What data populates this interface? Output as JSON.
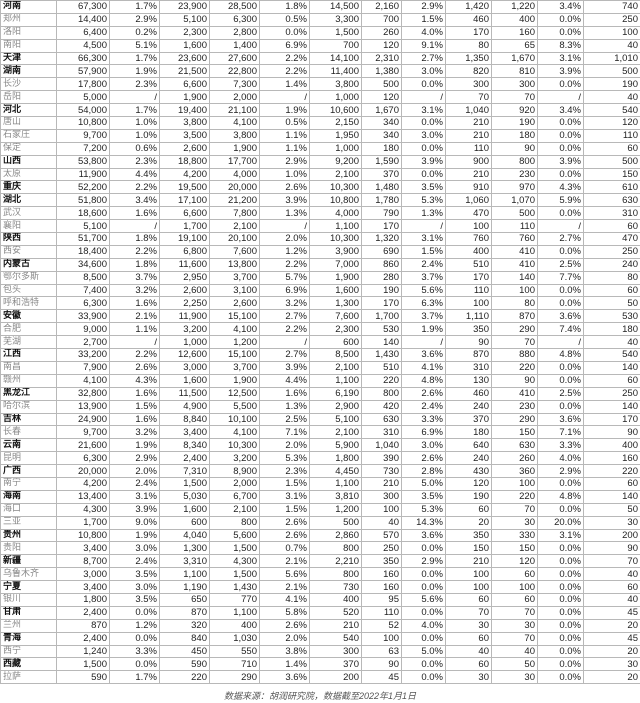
{
  "rows": [
    {
      "name": "河南",
      "province": true,
      "v": [
        "67,300",
        "1.7%",
        "23,900",
        "28,500",
        "1.8%",
        "14,500",
        "2,160",
        "2.9%",
        "1,420",
        "1,220",
        "3.4%",
        "740"
      ]
    },
    {
      "name": "郑州",
      "province": false,
      "v": [
        "14,400",
        "2.9%",
        "5,100",
        "6,300",
        "0.5%",
        "3,300",
        "700",
        "1.5%",
        "460",
        "400",
        "0.0%",
        "250"
      ]
    },
    {
      "name": "洛阳",
      "province": false,
      "v": [
        "6,400",
        "0.2%",
        "2,300",
        "2,800",
        "0.0%",
        "1,500",
        "260",
        "4.0%",
        "170",
        "160",
        "0.0%",
        "100"
      ]
    },
    {
      "name": "南阳",
      "province": false,
      "v": [
        "4,500",
        "5.1%",
        "1,600",
        "1,400",
        "6.9%",
        "700",
        "120",
        "9.1%",
        "80",
        "65",
        "8.3%",
        "40"
      ]
    },
    {
      "name": "天津",
      "province": true,
      "v": [
        "66,300",
        "1.7%",
        "23,600",
        "27,600",
        "2.2%",
        "14,100",
        "2,310",
        "2.7%",
        "1,350",
        "1,670",
        "3.1%",
        "1,010"
      ]
    },
    {
      "name": "湖南",
      "province": true,
      "v": [
        "57,900",
        "1.9%",
        "21,500",
        "22,800",
        "2.2%",
        "11,400",
        "1,380",
        "3.0%",
        "820",
        "810",
        "3.9%",
        "500"
      ]
    },
    {
      "name": "长沙",
      "province": false,
      "v": [
        "17,800",
        "2.3%",
        "6,600",
        "7,300",
        "1.4%",
        "3,800",
        "500",
        "0.0%",
        "300",
        "300",
        "0.0%",
        "190"
      ]
    },
    {
      "name": "岳阳",
      "province": false,
      "v": [
        "5,000",
        "/",
        "1,900",
        "2,000",
        "/",
        "1,000",
        "120",
        "/",
        "70",
        "70",
        "/",
        "40"
      ]
    },
    {
      "name": "河北",
      "province": true,
      "v": [
        "54,000",
        "1.7%",
        "19,400",
        "21,100",
        "1.9%",
        "10,600",
        "1,670",
        "3.1%",
        "1,040",
        "920",
        "3.4%",
        "540"
      ]
    },
    {
      "name": "唐山",
      "province": false,
      "v": [
        "10,800",
        "1.0%",
        "3,800",
        "4,100",
        "0.5%",
        "2,150",
        "340",
        "0.0%",
        "210",
        "190",
        "0.0%",
        "120"
      ]
    },
    {
      "name": "石家庄",
      "province": false,
      "v": [
        "9,700",
        "1.0%",
        "3,500",
        "3,800",
        "1.1%",
        "1,950",
        "340",
        "3.0%",
        "210",
        "180",
        "0.0%",
        "110"
      ]
    },
    {
      "name": "保定",
      "province": false,
      "v": [
        "7,200",
        "0.6%",
        "2,600",
        "1,900",
        "1.1%",
        "1,000",
        "180",
        "0.0%",
        "110",
        "90",
        "0.0%",
        "60"
      ]
    },
    {
      "name": "山西",
      "province": true,
      "v": [
        "53,800",
        "2.3%",
        "18,800",
        "17,700",
        "2.9%",
        "9,200",
        "1,590",
        "3.9%",
        "900",
        "800",
        "3.9%",
        "500"
      ]
    },
    {
      "name": "太原",
      "province": false,
      "v": [
        "11,900",
        "4.4%",
        "4,200",
        "4,000",
        "1.0%",
        "2,100",
        "370",
        "0.0%",
        "210",
        "230",
        "0.0%",
        "150"
      ]
    },
    {
      "name": "重庆",
      "province": true,
      "v": [
        "52,200",
        "2.2%",
        "19,500",
        "20,000",
        "2.6%",
        "10,300",
        "1,480",
        "3.5%",
        "910",
        "970",
        "4.3%",
        "610"
      ]
    },
    {
      "name": "湖北",
      "province": true,
      "v": [
        "51,800",
        "3.4%",
        "17,100",
        "21,200",
        "3.9%",
        "10,800",
        "1,780",
        "5.3%",
        "1,060",
        "1,070",
        "5.9%",
        "630"
      ]
    },
    {
      "name": "武汉",
      "province": false,
      "v": [
        "18,600",
        "1.6%",
        "6,600",
        "7,800",
        "1.3%",
        "4,000",
        "790",
        "1.3%",
        "470",
        "500",
        "0.0%",
        "310"
      ]
    },
    {
      "name": "襄阳",
      "province": false,
      "v": [
        "5,100",
        "/",
        "1,700",
        "2,100",
        "/",
        "1,100",
        "170",
        "/",
        "100",
        "110",
        "/",
        "60"
      ]
    },
    {
      "name": "陕西",
      "province": true,
      "v": [
        "51,700",
        "1.8%",
        "19,100",
        "20,100",
        "2.0%",
        "10,300",
        "1,320",
        "3.1%",
        "760",
        "760",
        "2.7%",
        "470"
      ]
    },
    {
      "name": "西安",
      "province": false,
      "v": [
        "18,400",
        "2.2%",
        "6,800",
        "7,600",
        "1.2%",
        "3,900",
        "690",
        "1.5%",
        "400",
        "410",
        "0.0%",
        "250"
      ]
    },
    {
      "name": "内蒙古",
      "province": true,
      "v": [
        "34,600",
        "1.8%",
        "11,600",
        "13,800",
        "2.2%",
        "7,000",
        "860",
        "2.4%",
        "510",
        "410",
        "2.5%",
        "240"
      ]
    },
    {
      "name": "鄂尔多斯",
      "province": false,
      "v": [
        "8,500",
        "3.7%",
        "2,950",
        "3,700",
        "5.7%",
        "1,900",
        "280",
        "3.7%",
        "170",
        "140",
        "7.7%",
        "80"
      ]
    },
    {
      "name": "包头",
      "province": false,
      "v": [
        "7,400",
        "3.2%",
        "2,600",
        "3,100",
        "6.9%",
        "1,600",
        "190",
        "5.6%",
        "110",
        "100",
        "0.0%",
        "60"
      ]
    },
    {
      "name": "呼和浩特",
      "province": false,
      "v": [
        "6,300",
        "1.6%",
        "2,250",
        "2,600",
        "3.2%",
        "1,300",
        "170",
        "6.3%",
        "100",
        "80",
        "0.0%",
        "50"
      ]
    },
    {
      "name": "安徽",
      "province": true,
      "v": [
        "33,900",
        "2.1%",
        "11,900",
        "15,100",
        "2.7%",
        "7,600",
        "1,700",
        "3.7%",
        "1,110",
        "870",
        "3.6%",
        "530"
      ]
    },
    {
      "name": "合肥",
      "province": false,
      "v": [
        "9,000",
        "1.1%",
        "3,200",
        "4,100",
        "2.2%",
        "2,300",
        "530",
        "1.9%",
        "350",
        "290",
        "7.4%",
        "180"
      ]
    },
    {
      "name": "芜湖",
      "province": false,
      "v": [
        "2,700",
        "/",
        "1,000",
        "1,200",
        "/",
        "600",
        "140",
        "/",
        "90",
        "70",
        "/",
        "40"
      ]
    },
    {
      "name": "江西",
      "province": true,
      "v": [
        "33,200",
        "2.2%",
        "12,600",
        "15,100",
        "2.7%",
        "8,500",
        "1,430",
        "3.6%",
        "870",
        "880",
        "4.8%",
        "540"
      ]
    },
    {
      "name": "南昌",
      "province": false,
      "v": [
        "7,900",
        "2.6%",
        "3,000",
        "3,700",
        "3.9%",
        "2,100",
        "510",
        "4.1%",
        "310",
        "220",
        "0.0%",
        "140"
      ]
    },
    {
      "name": "赣州",
      "province": false,
      "v": [
        "4,100",
        "4.3%",
        "1,600",
        "1,900",
        "4.4%",
        "1,100",
        "220",
        "4.8%",
        "130",
        "90",
        "0.0%",
        "60"
      ]
    },
    {
      "name": "黑龙江",
      "province": true,
      "v": [
        "32,800",
        "1.6%",
        "11,500",
        "12,500",
        "1.6%",
        "6,190",
        "800",
        "2.6%",
        "460",
        "410",
        "2.5%",
        "250"
      ]
    },
    {
      "name": "哈尔滨",
      "province": false,
      "v": [
        "13,900",
        "1.5%",
        "4,900",
        "5,500",
        "1.3%",
        "2,900",
        "420",
        "2.4%",
        "240",
        "230",
        "0.0%",
        "140"
      ]
    },
    {
      "name": "吉林",
      "province": true,
      "v": [
        "24,900",
        "1.6%",
        "8,840",
        "10,100",
        "2.5%",
        "5,100",
        "630",
        "3.3%",
        "370",
        "290",
        "3.6%",
        "170"
      ]
    },
    {
      "name": "长春",
      "province": false,
      "v": [
        "9,700",
        "3.2%",
        "3,400",
        "4,100",
        "7.1%",
        "2,100",
        "310",
        "6.9%",
        "180",
        "150",
        "7.1%",
        "90"
      ]
    },
    {
      "name": "云南",
      "province": true,
      "v": [
        "21,600",
        "1.9%",
        "8,340",
        "10,300",
        "2.0%",
        "5,900",
        "1,040",
        "3.0%",
        "640",
        "630",
        "3.3%",
        "400"
      ]
    },
    {
      "name": "昆明",
      "province": false,
      "v": [
        "6,300",
        "2.9%",
        "2,400",
        "3,200",
        "5.3%",
        "1,800",
        "390",
        "2.6%",
        "240",
        "260",
        "4.0%",
        "160"
      ]
    },
    {
      "name": "广西",
      "province": true,
      "v": [
        "20,000",
        "2.0%",
        "7,310",
        "8,900",
        "2.3%",
        "4,450",
        "730",
        "2.8%",
        "430",
        "360",
        "2.9%",
        "220"
      ]
    },
    {
      "name": "南宁",
      "province": false,
      "v": [
        "4,200",
        "2.4%",
        "1,500",
        "2,000",
        "1.5%",
        "1,100",
        "210",
        "5.0%",
        "120",
        "100",
        "0.0%",
        "60"
      ]
    },
    {
      "name": "海南",
      "province": true,
      "v": [
        "13,400",
        "3.1%",
        "5,030",
        "6,700",
        "3.1%",
        "3,810",
        "300",
        "3.5%",
        "190",
        "220",
        "4.8%",
        "140"
      ]
    },
    {
      "name": "海口",
      "province": false,
      "v": [
        "4,300",
        "3.9%",
        "1,600",
        "2,100",
        "1.5%",
        "1,200",
        "100",
        "5.3%",
        "60",
        "70",
        "0.0%",
        "50"
      ]
    },
    {
      "name": "三亚",
      "province": false,
      "v": [
        "1,700",
        "9.0%",
        "600",
        "800",
        "2.6%",
        "500",
        "40",
        "14.3%",
        "20",
        "30",
        "20.0%",
        "30"
      ]
    },
    {
      "name": "贵州",
      "province": true,
      "v": [
        "10,800",
        "1.9%",
        "4,040",
        "5,600",
        "2.6%",
        "2,860",
        "570",
        "3.6%",
        "350",
        "330",
        "3.1%",
        "200"
      ]
    },
    {
      "name": "贵阳",
      "province": false,
      "v": [
        "3,400",
        "3.0%",
        "1,300",
        "1,500",
        "0.7%",
        "800",
        "250",
        "0.0%",
        "150",
        "150",
        "0.0%",
        "90"
      ]
    },
    {
      "name": "新疆",
      "province": true,
      "v": [
        "8,700",
        "2.4%",
        "3,310",
        "4,300",
        "2.1%",
        "2,210",
        "350",
        "2.9%",
        "210",
        "120",
        "0.0%",
        "70"
      ]
    },
    {
      "name": "乌鲁木齐",
      "province": false,
      "v": [
        "3,000",
        "3.5%",
        "1,100",
        "1,500",
        "5.6%",
        "800",
        "160",
        "0.0%",
        "100",
        "60",
        "0.0%",
        "40"
      ]
    },
    {
      "name": "宁夏",
      "province": true,
      "v": [
        "3,400",
        "3.0%",
        "1,190",
        "1,430",
        "2.1%",
        "730",
        "160",
        "0.0%",
        "100",
        "100",
        "0.0%",
        "60"
      ]
    },
    {
      "name": "银川",
      "province": false,
      "v": [
        "1,800",
        "3.5%",
        "650",
        "770",
        "4.1%",
        "400",
        "95",
        "5.6%",
        "60",
        "60",
        "0.0%",
        "40"
      ]
    },
    {
      "name": "甘肃",
      "province": true,
      "v": [
        "2,400",
        "0.0%",
        "870",
        "1,100",
        "5.8%",
        "520",
        "110",
        "0.0%",
        "70",
        "70",
        "0.0%",
        "45"
      ]
    },
    {
      "name": "兰州",
      "province": false,
      "v": [
        "870",
        "1.2%",
        "320",
        "400",
        "2.6%",
        "210",
        "52",
        "4.0%",
        "30",
        "30",
        "0.0%",
        "20"
      ]
    },
    {
      "name": "青海",
      "province": true,
      "v": [
        "2,400",
        "0.0%",
        "840",
        "1,030",
        "2.0%",
        "540",
        "100",
        "0.0%",
        "60",
        "70",
        "0.0%",
        "45"
      ]
    },
    {
      "name": "西宁",
      "province": false,
      "v": [
        "1,240",
        "3.3%",
        "450",
        "550",
        "3.8%",
        "300",
        "63",
        "5.0%",
        "40",
        "40",
        "0.0%",
        "20"
      ]
    },
    {
      "name": "西藏",
      "province": true,
      "v": [
        "1,500",
        "0.0%",
        "590",
        "710",
        "1.4%",
        "370",
        "90",
        "0.0%",
        "60",
        "50",
        "0.0%",
        "30"
      ]
    },
    {
      "name": "拉萨",
      "province": false,
      "v": [
        "590",
        "1.7%",
        "220",
        "290",
        "3.6%",
        "200",
        "45",
        "0.0%",
        "30",
        "30",
        "0.0%",
        "20"
      ]
    }
  ],
  "footer": "数据来源：胡润研究院，数据截至2022年1月1日"
}
